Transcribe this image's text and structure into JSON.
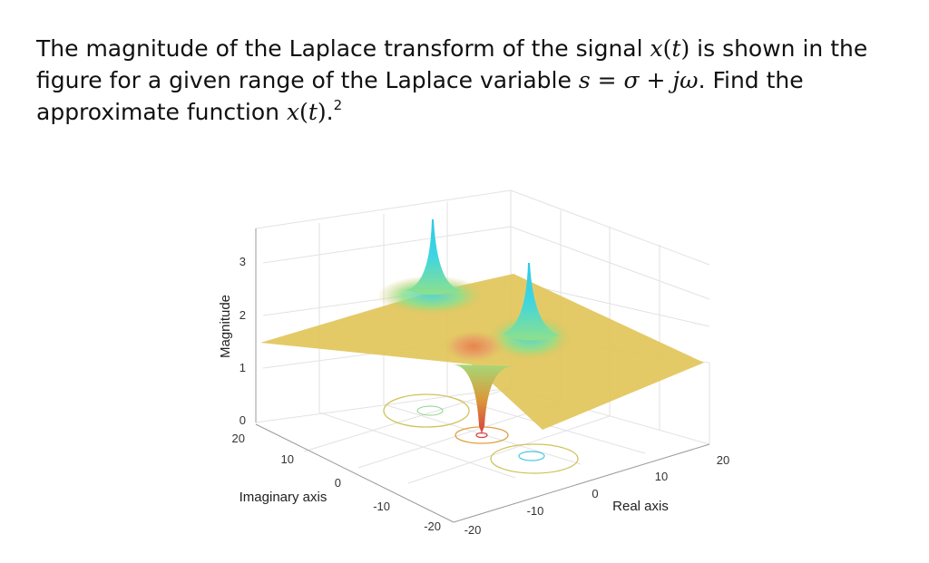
{
  "question": {
    "part1": "The magnitude of the Laplace transform of the signal ",
    "x": "x",
    "t": "t",
    "part2": " is shown in the figure for a given range of the Laplace variable ",
    "s_expr": "s",
    "eq": " = ",
    "sigma": "σ",
    "plus": " + ",
    "jomega": "jω",
    "part3": ". Find the approximate function ",
    "x2": "x",
    "t2": "t",
    "part4": ".",
    "footnote": "2"
  },
  "chart_data": {
    "type": "surface",
    "zlabel": "Magnitude",
    "ylabel": "Imaginary axis",
    "xlabel": "Real axis",
    "zticks": [
      "0",
      "1",
      "2",
      "3"
    ],
    "yticks": [
      "20",
      "10",
      "0",
      "-10",
      "-20"
    ],
    "xticks": [
      "-20",
      "-10",
      "0",
      "10",
      "20"
    ],
    "xlim": [
      -20,
      20
    ],
    "ylim": [
      -20,
      20
    ],
    "zlim": [
      0,
      3
    ],
    "grid": true,
    "colormap": [
      "#e0c25a",
      "#9be07a",
      "#3fd6e0",
      "#e8503a"
    ],
    "features": [
      {
        "kind": "pole",
        "label": "peak",
        "color": "#3fd6e0"
      },
      {
        "kind": "pole",
        "label": "peak",
        "color": "#3fd6e0"
      },
      {
        "kind": "zero",
        "label": "dip",
        "color": "#d84040"
      }
    ]
  }
}
